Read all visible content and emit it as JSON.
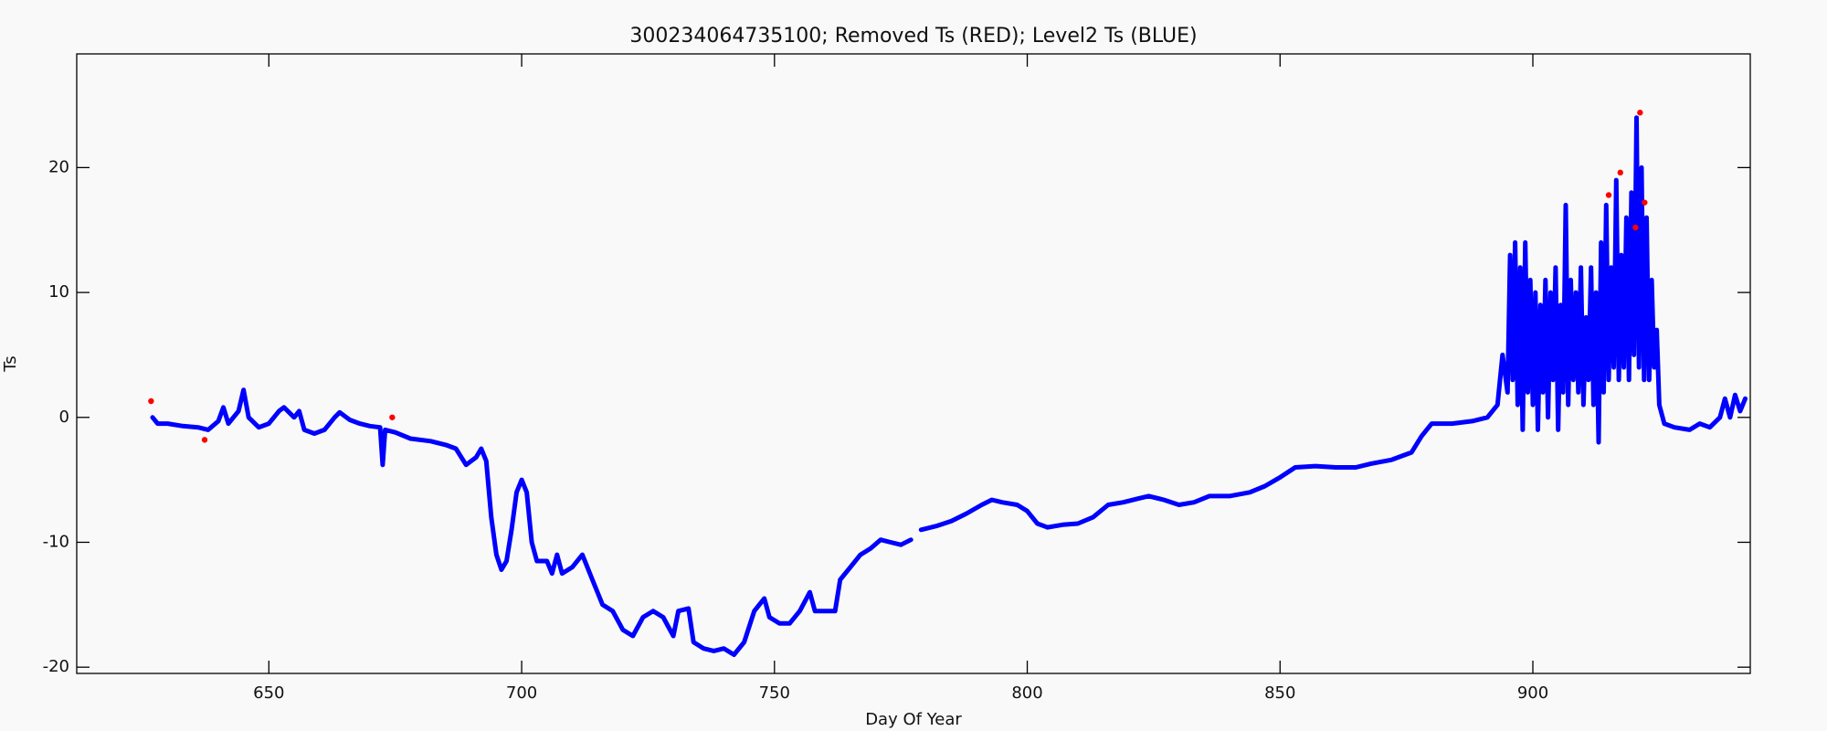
{
  "chart_data": {
    "type": "scatter",
    "title": "300234064735100; Removed Ts (RED); Level2 Ts (BLUE)",
    "x_label": "Day Of Year",
    "y_label": "Ts",
    "xlim": [
      612,
      943
    ],
    "xticks": [
      650,
      700,
      750,
      800,
      850,
      900
    ],
    "ylim": [
      -20.5,
      29.1
    ],
    "yticks": [
      -20,
      -10,
      0,
      10,
      20
    ],
    "series": [
      {
        "color": "#0000ff",
        "mode": "line",
        "x": [
          627,
          628,
          630,
          633,
          636,
          638,
          640,
          641,
          642,
          644,
          645,
          646,
          648,
          650,
          652,
          653,
          655,
          656,
          657,
          659,
          661,
          663,
          664,
          666,
          668,
          670,
          672,
          672.5,
          673,
          675,
          678,
          682,
          685,
          687,
          689,
          691,
          692,
          693,
          694,
          695,
          696,
          697,
          698,
          699,
          700,
          701,
          702,
          703,
          705,
          706,
          707,
          708,
          710,
          712,
          714,
          716,
          718,
          720,
          722,
          724,
          726,
          728,
          730,
          731,
          733,
          734,
          736,
          738,
          740,
          742,
          744,
          746,
          748,
          749,
          751,
          753,
          755,
          757,
          758,
          760,
          762,
          763,
          765,
          767,
          769,
          771,
          773,
          775,
          777,
          null,
          779,
          782,
          785,
          788,
          791,
          793,
          795,
          798,
          800,
          802,
          804,
          807,
          810,
          813,
          816,
          819,
          822,
          824,
          827,
          830,
          833,
          836,
          840,
          844,
          847,
          850,
          853,
          857,
          861,
          865,
          868,
          872,
          876,
          878,
          880,
          884,
          888,
          891,
          893,
          894,
          895,
          895.5,
          896,
          896.5,
          897,
          897.5,
          898,
          898.5,
          899,
          899.5,
          900,
          900.5,
          901,
          901.5,
          902,
          902.5,
          903,
          903.5,
          904,
          904.5,
          905,
          905.5,
          906,
          906.5,
          907,
          907.5,
          908,
          908.5,
          909,
          909.5,
          910,
          910.5,
          911,
          911.5,
          912,
          912.5,
          913,
          913.5,
          914,
          914.5,
          915,
          915.5,
          916,
          916.5,
          917,
          917.5,
          918,
          918.5,
          919,
          919.5,
          920,
          920.5,
          921,
          921.5,
          922,
          922.5,
          923,
          923.5,
          924,
          924.5,
          925,
          926,
          928,
          931,
          933,
          935,
          937,
          938,
          939,
          940,
          941,
          942
        ],
        "values": [
          0,
          -0.5,
          -0.5,
          -0.7,
          -0.8,
          -1.0,
          -0.3,
          0.8,
          -0.5,
          0.5,
          2.2,
          0,
          -0.8,
          -0.5,
          0.5,
          0.8,
          0,
          0.5,
          -1.0,
          -1.3,
          -1.0,
          0,
          0.4,
          -0.2,
          -0.5,
          -0.7,
          -0.8,
          -3.8,
          -1.0,
          -1.2,
          -1.7,
          -1.9,
          -2.2,
          -2.5,
          -3.8,
          -3.2,
          -2.5,
          -3.5,
          -8,
          -11,
          -12.2,
          -11.5,
          -9,
          -6,
          -5,
          -6,
          -10,
          -11.5,
          -11.5,
          -12.5,
          -11,
          -12.5,
          -12,
          -11,
          -13,
          -15,
          -15.5,
          -17,
          -17.5,
          -16,
          -15.5,
          -16,
          -17.5,
          -15.5,
          -15.3,
          -18,
          -18.5,
          -18.7,
          -18.5,
          -19,
          -18,
          -15.5,
          -14.5,
          -16,
          -16.5,
          -16.5,
          -15.5,
          -14,
          -15.5,
          -15.5,
          -15.5,
          -13,
          -12,
          -11,
          -10.5,
          -9.8,
          -10,
          -10.2,
          -9.8,
          null,
          -9,
          -8.7,
          -8.3,
          -7.7,
          -7,
          -6.6,
          -6.8,
          -7,
          -7.5,
          -8.5,
          -8.8,
          -8.6,
          -8.5,
          -8,
          -7,
          -6.8,
          -6.5,
          -6.3,
          -6.6,
          -7.0,
          -6.8,
          -6.3,
          -6.3,
          -6.0,
          -5.5,
          -4.8,
          -4.0,
          -3.9,
          -4.0,
          -4.0,
          -3.7,
          -3.4,
          -2.8,
          -1.5,
          -0.5,
          -0.5,
          -0.3,
          0,
          1,
          5,
          2,
          13,
          3,
          14,
          1,
          12,
          -1,
          14,
          2,
          11,
          1,
          10,
          -1,
          9,
          2,
          11,
          0,
          10,
          3,
          12,
          -1,
          9,
          2,
          17,
          1,
          11,
          3,
          10,
          2,
          12,
          1,
          8,
          3,
          12,
          1,
          10,
          -2,
          14,
          2,
          17,
          3,
          12,
          4,
          19,
          3,
          13,
          4,
          16,
          3,
          18,
          5,
          24,
          4,
          20,
          3,
          16,
          3,
          11,
          4,
          7,
          1,
          -0.5,
          -0.8,
          -1,
          -0.5,
          -0.8,
          0,
          1.5,
          0,
          1.8,
          0.5,
          1.5
        ]
      },
      {
        "color": "#ff0000",
        "mode": "markers",
        "x": [
          626.7,
          637.3,
          674.4,
          915.0,
          917.3,
          921.2,
          920.3,
          922.1
        ],
        "values": [
          1.3,
          -1.8,
          0,
          17.8,
          19.6,
          24.4,
          15.2,
          17.2
        ]
      }
    ]
  }
}
